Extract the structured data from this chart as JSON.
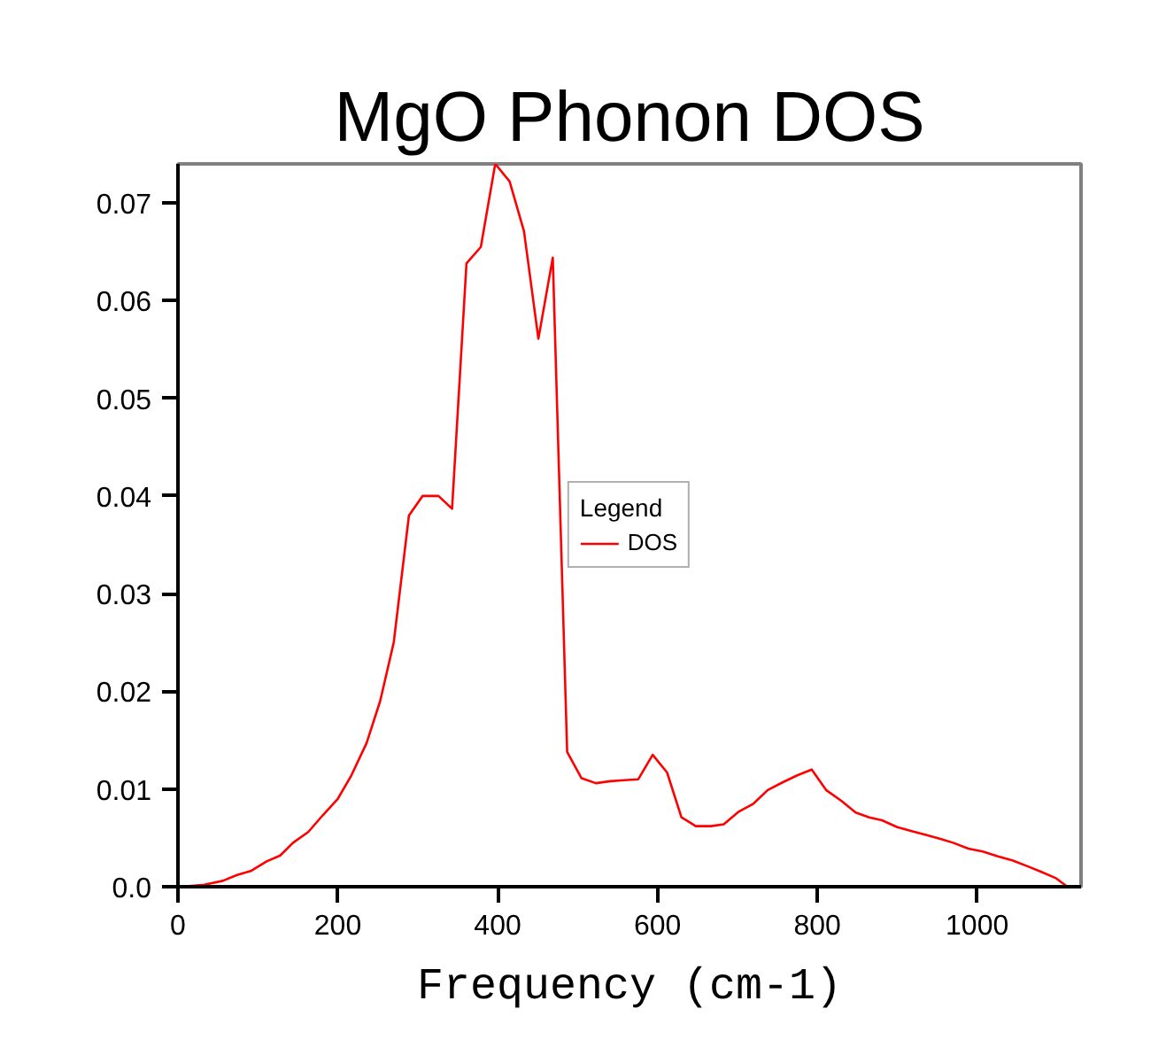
{
  "chart_data": {
    "type": "line",
    "title": "MgO Phonon DOS",
    "xlabel": "Frequency (cm-1)",
    "legend_title": "Legend",
    "legend": "center",
    "grid": false,
    "marker": "none",
    "line_style": "solid",
    "xlim": [
      0,
      1130
    ],
    "xticks": [
      0,
      200,
      400,
      600,
      800,
      1000
    ],
    "ylim": [
      0,
      0.074
    ],
    "yticks": [
      {
        "value": 0,
        "label": "0.0"
      },
      0.01,
      0.02,
      0.03,
      0.04,
      0.05,
      0.06,
      0.07
    ],
    "series": [
      {
        "name": "DOS",
        "color": "#ff0000",
        "x": [
          4,
          33,
          56,
          74,
          91,
          111,
          128,
          144,
          163,
          181,
          200,
          217,
          236,
          253,
          270,
          289,
          306,
          326,
          343,
          361,
          379,
          397,
          415,
          433,
          451,
          469,
          487,
          505,
          523,
          541,
          558,
          576,
          594,
          612,
          630,
          648,
          667,
          683,
          702,
          720,
          738,
          757,
          775,
          793,
          811,
          830,
          848,
          865,
          881,
          900,
          918,
          936,
          954,
          970,
          989,
          1007,
          1026,
          1044,
          1063,
          1081,
          1098,
          1113
        ],
        "values": [
          0,
          0.0002,
          0.0006,
          0.0012,
          0.0016,
          0.0026,
          0.0032,
          0.0045,
          0.0056,
          0.0073,
          0.009,
          0.0114,
          0.0147,
          0.019,
          0.025,
          0.038,
          0.04,
          0.04,
          0.0387,
          0.0638,
          0.0655,
          0.074,
          0.0722,
          0.0671,
          0.0561,
          0.0644,
          0.0138,
          0.0111,
          0.0106,
          0.0108,
          0.0109,
          0.011,
          0.0135,
          0.0117,
          0.0071,
          0.0062,
          0.0062,
          0.0064,
          0.0077,
          0.0085,
          0.0099,
          0.0107,
          0.0114,
          0.012,
          0.0099,
          0.0088,
          0.0076,
          0.0071,
          0.0068,
          0.0061,
          0.0057,
          0.0053,
          0.0049,
          0.0045,
          0.0039,
          0.0036,
          0.0031,
          0.0027,
          0.0021,
          0.0015,
          0.0009,
          0
        ]
      }
    ]
  }
}
